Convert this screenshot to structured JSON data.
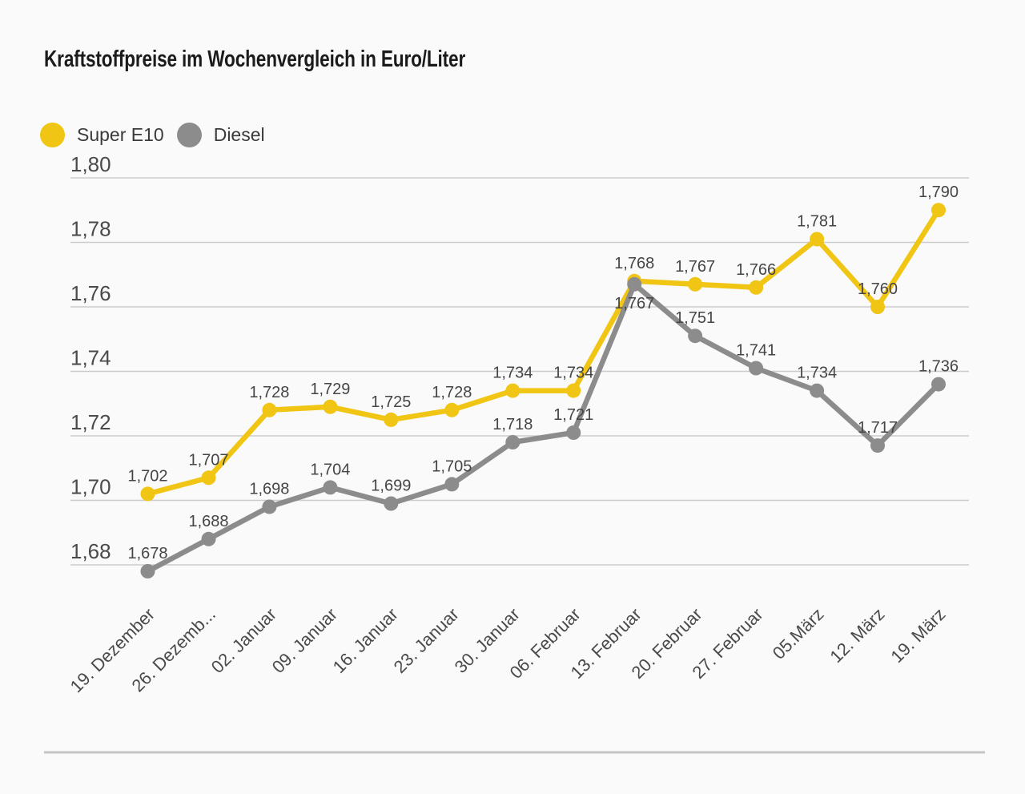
{
  "title": "Kraftstoffpreise im Wochenvergleich in Euro/Liter",
  "legend": [
    {
      "label": "Super E10",
      "color": "#F0C514"
    },
    {
      "label": "Diesel",
      "color": "#8C8C8C"
    }
  ],
  "colors": {
    "background": "#FAFAFA",
    "grid": "#CCCCCC",
    "separator": "#C5C5C5",
    "title_text": "#1B1B1B",
    "axis_text": "#4A4A4A",
    "label_text": "#454545",
    "super_e10": "#F0C514",
    "diesel": "#8C8C8C"
  },
  "chart_data": {
    "type": "line",
    "title": "Kraftstoffpreise im Wochenvergleich in Euro/Liter",
    "unit": "Euro/Liter",
    "xlabel": "",
    "ylabel": "",
    "grid": true,
    "legend_position": "top-left",
    "ylim": [
      1.672,
      1.81
    ],
    "categories": [
      "19. Dezember",
      "26. Dezemb...",
      "02. Januar",
      "09. Januar",
      "16. Januar",
      "23. Januar",
      "30. Januar",
      "06. Februar",
      "13. Februar",
      "20. Februar",
      "27. Februar",
      "05.März",
      "12. März",
      "19. März"
    ],
    "yaxis": {
      "ticks": [
        {
          "label": "1,80",
          "value": 1.8
        },
        {
          "label": "1,78",
          "value": 1.78
        },
        {
          "label": "1,76",
          "value": 1.76
        },
        {
          "label": "1,74",
          "value": 1.74
        },
        {
          "label": "1,72",
          "value": 1.72
        },
        {
          "label": "1,70",
          "value": 1.7
        },
        {
          "label": "1,68",
          "value": 1.68
        }
      ]
    },
    "series": [
      {
        "name": "Super E10",
        "color": "#F0C514",
        "values": [
          1.702,
          1.707,
          1.728,
          1.729,
          1.725,
          1.728,
          1.734,
          1.734,
          1.768,
          1.767,
          1.766,
          1.781,
          1.76,
          1.79
        ],
        "point_labels": [
          "1,702",
          "1,707",
          "1,728",
          "1,729",
          "1,725",
          "1,728",
          "1,734",
          "1,734",
          "1,768",
          "1,767",
          "1,766",
          "1,781",
          "1,760",
          "1,790"
        ],
        "labels_below": []
      },
      {
        "name": "Diesel",
        "color": "#8C8C8C",
        "values": [
          1.678,
          1.688,
          1.698,
          1.704,
          1.699,
          1.705,
          1.718,
          1.721,
          1.767,
          1.751,
          1.741,
          1.734,
          1.717,
          1.736
        ],
        "point_labels": [
          "1,678",
          "1,688",
          "1,698",
          "1,704",
          "1,699",
          "1,705",
          "1,718",
          "1,721",
          "1,767",
          "1,751",
          "1,741",
          "1,734",
          "1,717",
          "1,736"
        ],
        "labels_below": [
          8
        ]
      }
    ]
  }
}
